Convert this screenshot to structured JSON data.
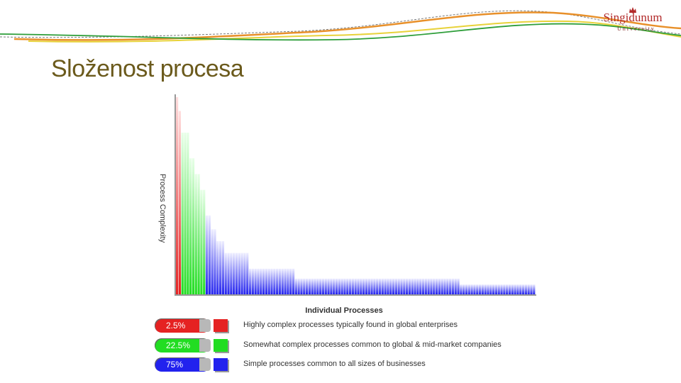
{
  "slide": {
    "title": "Složenost procesa"
  },
  "logo": {
    "name": "Singidunum",
    "subtitle": "University"
  },
  "colors": {
    "red": "#e52222",
    "green": "#22dd22",
    "blue": "#2222ee",
    "title": "#6b5a1c"
  },
  "chart_data": {
    "type": "bar",
    "ylabel": "Process Complexity",
    "xlabel": "Individual Processes",
    "ylim": [
      0,
      100
    ],
    "grid": false,
    "legend": "bottom",
    "values": [
      100,
      93,
      82,
      82,
      82,
      69,
      69,
      61,
      61,
      53,
      53,
      40,
      40,
      33,
      33,
      27,
      27,
      27,
      21,
      21,
      21,
      21,
      21,
      21,
      21,
      21,
      21,
      13,
      13,
      13,
      13,
      13,
      13,
      13,
      13,
      13,
      13,
      13,
      13,
      13,
      13,
      13,
      13,
      13,
      8,
      8,
      8,
      8,
      8,
      8,
      8,
      8,
      8,
      8,
      8,
      8,
      8,
      8,
      8,
      8,
      8,
      8,
      8,
      8,
      8,
      8,
      8,
      8,
      8,
      8,
      8,
      8,
      8,
      8,
      8,
      8,
      8,
      8,
      8,
      8,
      8,
      8,
      8,
      8,
      8,
      8,
      8,
      8,
      8,
      8,
      8,
      8,
      8,
      8,
      8,
      8,
      8,
      8,
      8,
      8,
      8,
      8,
      8,
      8,
      8,
      5,
      5,
      5,
      5,
      5,
      5,
      5,
      5,
      5,
      5,
      5,
      5,
      5,
      5,
      5,
      5,
      5,
      5,
      5,
      5,
      5,
      5,
      5,
      5,
      5,
      5,
      5,
      5
    ],
    "segments": [
      {
        "name": "2.5%",
        "count": 2,
        "color": "#e52222",
        "description": "Highly complex processes typically found in global enterprises"
      },
      {
        "name": "22.5%",
        "count": 9,
        "color": "#22dd22",
        "description": "Somewhat complex processes common to global & mid-market companies"
      },
      {
        "name": "75%",
        "count": 123,
        "color": "#2222ee",
        "description": "Simple processes common to all sizes of businesses"
      }
    ]
  },
  "legend": [
    {
      "pct": "2.5%",
      "text": "Highly complex processes typically found in global enterprises",
      "color": "#e52222"
    },
    {
      "pct": "22.5%",
      "text": "Somewhat complex processes common to global & mid-market companies",
      "color": "#22dd22"
    },
    {
      "pct": "75%",
      "text": "Simple processes common to all sizes of businesses",
      "color": "#2222ee"
    }
  ]
}
